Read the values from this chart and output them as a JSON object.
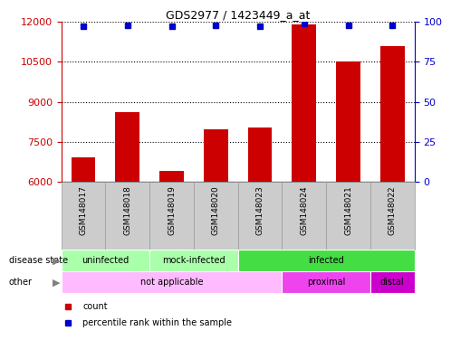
{
  "title": "GDS2977 / 1423449_a_at",
  "samples": [
    "GSM148017",
    "GSM148018",
    "GSM148019",
    "GSM148020",
    "GSM148023",
    "GSM148024",
    "GSM148021",
    "GSM148022"
  ],
  "counts": [
    6900,
    8600,
    6400,
    7950,
    8050,
    11900,
    10500,
    11100
  ],
  "percentile_ranks": [
    97,
    98,
    97,
    98,
    97,
    99,
    98,
    98
  ],
  "ylim_left": [
    6000,
    12000
  ],
  "yticks_left": [
    6000,
    7500,
    9000,
    10500,
    12000
  ],
  "ylim_right": [
    0,
    100
  ],
  "yticks_right": [
    0,
    25,
    50,
    75,
    100
  ],
  "bar_color": "#cc0000",
  "dot_color": "#0000cc",
  "left_tick_color": "#cc0000",
  "right_tick_color": "#0000cc",
  "ds_data": [
    [
      0,
      2,
      "uninfected",
      "#aaffaa"
    ],
    [
      2,
      4,
      "mock-infected",
      "#aaffaa"
    ],
    [
      4,
      8,
      "infected",
      "#44dd44"
    ]
  ],
  "other_data": [
    [
      0,
      5,
      "not applicable",
      "#ffbbff"
    ],
    [
      5,
      7,
      "proximal",
      "#ee44ee"
    ],
    [
      7,
      8,
      "distal",
      "#cc00cc"
    ]
  ],
  "bg_color": "#ffffff",
  "sample_cell_color": "#cccccc",
  "left_label": "disease state",
  "other_label": "other",
  "legend": [
    {
      "label": "count",
      "color": "#cc0000"
    },
    {
      "label": "percentile rank within the sample",
      "color": "#0000cc"
    }
  ]
}
